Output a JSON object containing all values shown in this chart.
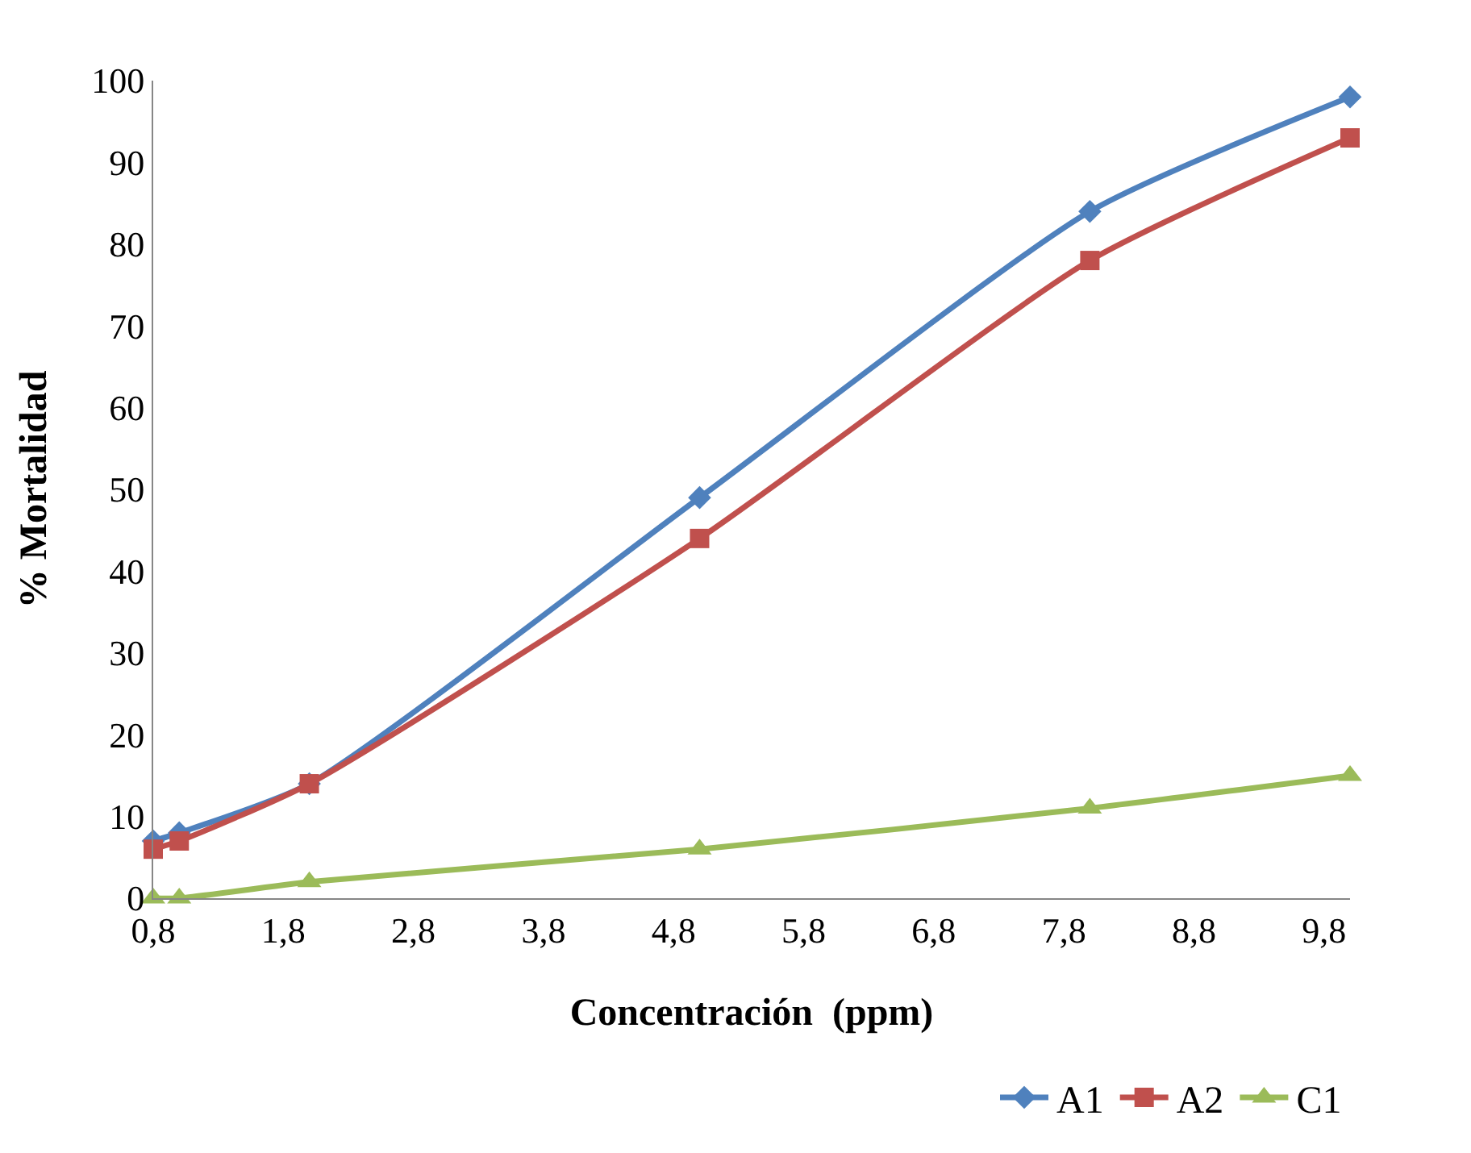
{
  "chart_data": {
    "type": "line",
    "xlabel": "Concentración  (ppm)",
    "ylabel": "% Mortalidad",
    "x": [
      0.8,
      1,
      2,
      5,
      8,
      10
    ],
    "series": [
      {
        "name": "A1",
        "color": "#4f81bd",
        "marker": "diamond",
        "values": [
          7,
          8,
          14,
          49,
          84,
          98
        ]
      },
      {
        "name": "A2",
        "color": "#c0504d",
        "marker": "square",
        "values": [
          6,
          7,
          14,
          44,
          78,
          93
        ]
      },
      {
        "name": "C1",
        "color": "#9bbb59",
        "marker": "triangle",
        "values": [
          0,
          0,
          2,
          6,
          11,
          15
        ]
      }
    ],
    "xlim": [
      0.8,
      10
    ],
    "xticks": [
      {
        "value": 0.8,
        "label": "0,8"
      },
      {
        "value": 1.8,
        "label": "1,8"
      },
      {
        "value": 2.8,
        "label": "2,8"
      },
      {
        "value": 3.8,
        "label": "3,8"
      },
      {
        "value": 4.8,
        "label": "4,8"
      },
      {
        "value": 5.8,
        "label": "5,8"
      },
      {
        "value": 6.8,
        "label": "6,8"
      },
      {
        "value": 7.8,
        "label": "7,8"
      },
      {
        "value": 8.8,
        "label": "8,8"
      },
      {
        "value": 9.8,
        "label": "9,8"
      }
    ],
    "ylim": [
      0,
      100
    ],
    "yticks": [
      0,
      10,
      20,
      30,
      40,
      50,
      60,
      70,
      80,
      90,
      100
    ],
    "legend": "bottom right",
    "line_style": "solid"
  }
}
